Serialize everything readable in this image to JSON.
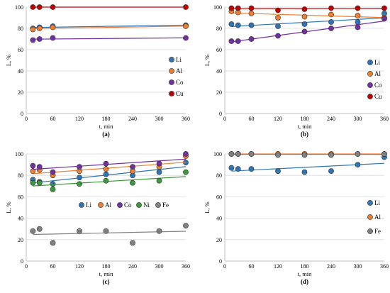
{
  "colors": {
    "Li": "#2e75b6",
    "Al": "#ed7d31",
    "Co": "#7030a0",
    "Cu": "#c00000",
    "Ni": "#3a9a3a",
    "Fe": "#808080"
  },
  "chart_data": [
    {
      "type": "scatter",
      "panel_label": "(a)",
      "xlabel": "t, min",
      "ylabel": "L, %",
      "xlim": [
        0,
        360
      ],
      "ylim": [
        0,
        100
      ],
      "xticks": [
        "0",
        "60",
        "120",
        "180",
        "240",
        "300",
        "360"
      ],
      "yticks": [
        "0",
        "20",
        "40",
        "60",
        "80",
        "100"
      ],
      "legend_position": "right",
      "trendlines": true,
      "series": [
        {
          "name": "Li",
          "x": [
            15,
            30,
            60,
            360
          ],
          "y": [
            80,
            81,
            82,
            83
          ]
        },
        {
          "name": "Al",
          "x": [
            15,
            30,
            60,
            360
          ],
          "y": [
            79,
            80,
            81,
            82
          ]
        },
        {
          "name": "Co",
          "x": [
            15,
            30,
            60,
            360
          ],
          "y": [
            69,
            70,
            71,
            71
          ]
        },
        {
          "name": "Cu",
          "x": [
            15,
            30,
            60,
            360
          ],
          "y": [
            100,
            100,
            100,
            100
          ]
        }
      ]
    },
    {
      "type": "scatter",
      "panel_label": "(b)",
      "xlabel": "t, min",
      "ylabel": "L, %",
      "xlim": [
        0,
        360
      ],
      "ylim": [
        0,
        100
      ],
      "xticks": [
        "0",
        "60",
        "120",
        "180",
        "240",
        "300",
        "360"
      ],
      "yticks": [
        "0",
        "20",
        "40",
        "60",
        "80",
        "100"
      ],
      "legend_position": "right",
      "trendlines": true,
      "series": [
        {
          "name": "Li",
          "x": [
            15,
            30,
            60,
            120,
            180,
            240,
            300,
            360
          ],
          "y": [
            84,
            83,
            83,
            82,
            84,
            86,
            86,
            94
          ]
        },
        {
          "name": "Al",
          "x": [
            15,
            30,
            60,
            120,
            180,
            240,
            300,
            360
          ],
          "y": [
            96,
            95,
            94,
            90,
            91,
            93,
            92,
            90
          ]
        },
        {
          "name": "Co",
          "x": [
            15,
            30,
            60,
            120,
            180,
            240,
            300,
            360
          ],
          "y": [
            68,
            68,
            70,
            73,
            77,
            80,
            81,
            89
          ]
        },
        {
          "name": "Cu",
          "x": [
            15,
            30,
            60,
            120,
            180,
            240,
            300,
            360
          ],
          "y": [
            99,
            99,
            99,
            97,
            98,
            99,
            99,
            99
          ]
        }
      ]
    },
    {
      "type": "scatter",
      "panel_label": "(c)",
      "xlabel": "t, min",
      "ylabel": "L, %",
      "xlim": [
        0,
        360
      ],
      "ylim": [
        0,
        100
      ],
      "xticks": [
        "0",
        "60",
        "120",
        "180",
        "240",
        "300",
        "360"
      ],
      "yticks": [
        "0",
        "20",
        "40",
        "60",
        "80",
        "100"
      ],
      "legend_position": "inside-center",
      "trendlines": true,
      "series": [
        {
          "name": "Li",
          "x": [
            15,
            30,
            60,
            120,
            180,
            240,
            300,
            360
          ],
          "y": [
            76,
            74,
            72,
            78,
            81,
            80,
            83,
            92
          ]
        },
        {
          "name": "Al",
          "x": [
            15,
            30,
            60,
            120,
            180,
            240,
            300,
            360
          ],
          "y": [
            84,
            85,
            80,
            84,
            86,
            84,
            88,
            98
          ]
        },
        {
          "name": "Co",
          "x": [
            15,
            30,
            60,
            120,
            180,
            240,
            300,
            360
          ],
          "y": [
            89,
            88,
            83,
            88,
            91,
            88,
            91,
            100
          ]
        },
        {
          "name": "Ni",
          "x": [
            15,
            30,
            60,
            120,
            180,
            240,
            300,
            360
          ],
          "y": [
            73,
            73,
            67,
            72,
            75,
            73,
            75,
            83
          ]
        },
        {
          "name": "Fe",
          "x": [
            15,
            30,
            60,
            120,
            180,
            240,
            300,
            360
          ],
          "y": [
            28,
            30,
            17,
            28,
            28,
            17,
            28,
            33
          ]
        }
      ]
    },
    {
      "type": "scatter",
      "panel_label": "(d)",
      "xlabel": "t, min",
      "ylabel": "L, %",
      "xlim": [
        0,
        360
      ],
      "ylim": [
        0,
        100
      ],
      "xticks": [
        "0",
        "60",
        "120",
        "180",
        "240",
        "300",
        "360"
      ],
      "yticks": [
        "0",
        "20",
        "40",
        "60",
        "80",
        "100"
      ],
      "legend_position": "right",
      "trendlines": true,
      "series": [
        {
          "name": "Li",
          "x": [
            15,
            30,
            60,
            120,
            180,
            240,
            300,
            360
          ],
          "y": [
            87,
            86,
            86,
            84,
            83,
            84,
            90,
            97
          ]
        },
        {
          "name": "Al",
          "x": [
            15,
            30,
            60,
            120,
            180,
            240,
            300,
            360
          ],
          "y": [
            100,
            100,
            100,
            100,
            100,
            100,
            100,
            100
          ]
        },
        {
          "name": "Fe",
          "x": [
            15,
            30,
            60,
            120,
            180,
            240,
            300,
            360
          ],
          "y": [
            100,
            100,
            100,
            99,
            99,
            99,
            100,
            100
          ]
        }
      ]
    }
  ]
}
